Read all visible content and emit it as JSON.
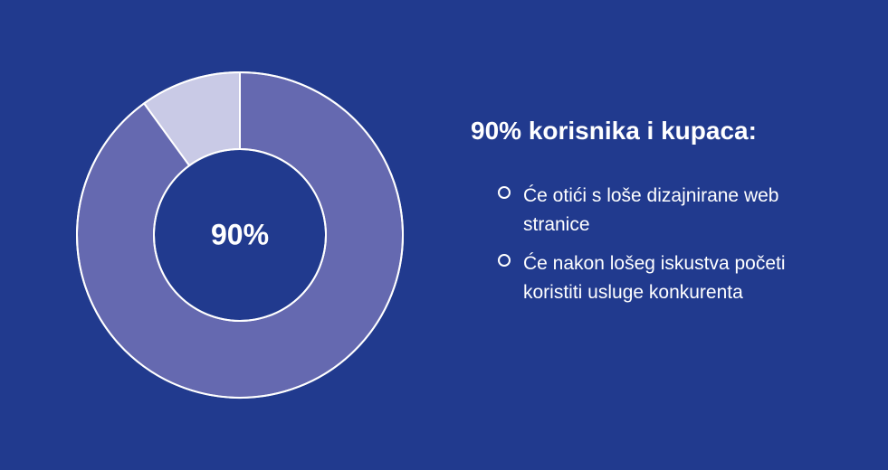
{
  "background_color": "#213a8e",
  "chart": {
    "type": "donut",
    "center_label": "90%",
    "center_label_fontsize": 32,
    "size": 370,
    "outer_radius": 180,
    "inner_radius": 95,
    "stroke_color": "#ffffff",
    "stroke_width": 2,
    "slices": [
      {
        "value": 90,
        "color": "#6569b0"
      },
      {
        "value": 10,
        "color": "#c9cae6"
      }
    ],
    "start_angle": -90
  },
  "headline": "90% korisnika i kupaca:",
  "headline_fontsize": 28,
  "bullets": [
    {
      "text": "Će otići s loše dizajnirane web stranice"
    },
    {
      "text": "Će nakon lošeg iskustva početi koristiti usluge konkurenta"
    }
  ],
  "bullet_fontsize": 21,
  "text_color": "#ffffff"
}
